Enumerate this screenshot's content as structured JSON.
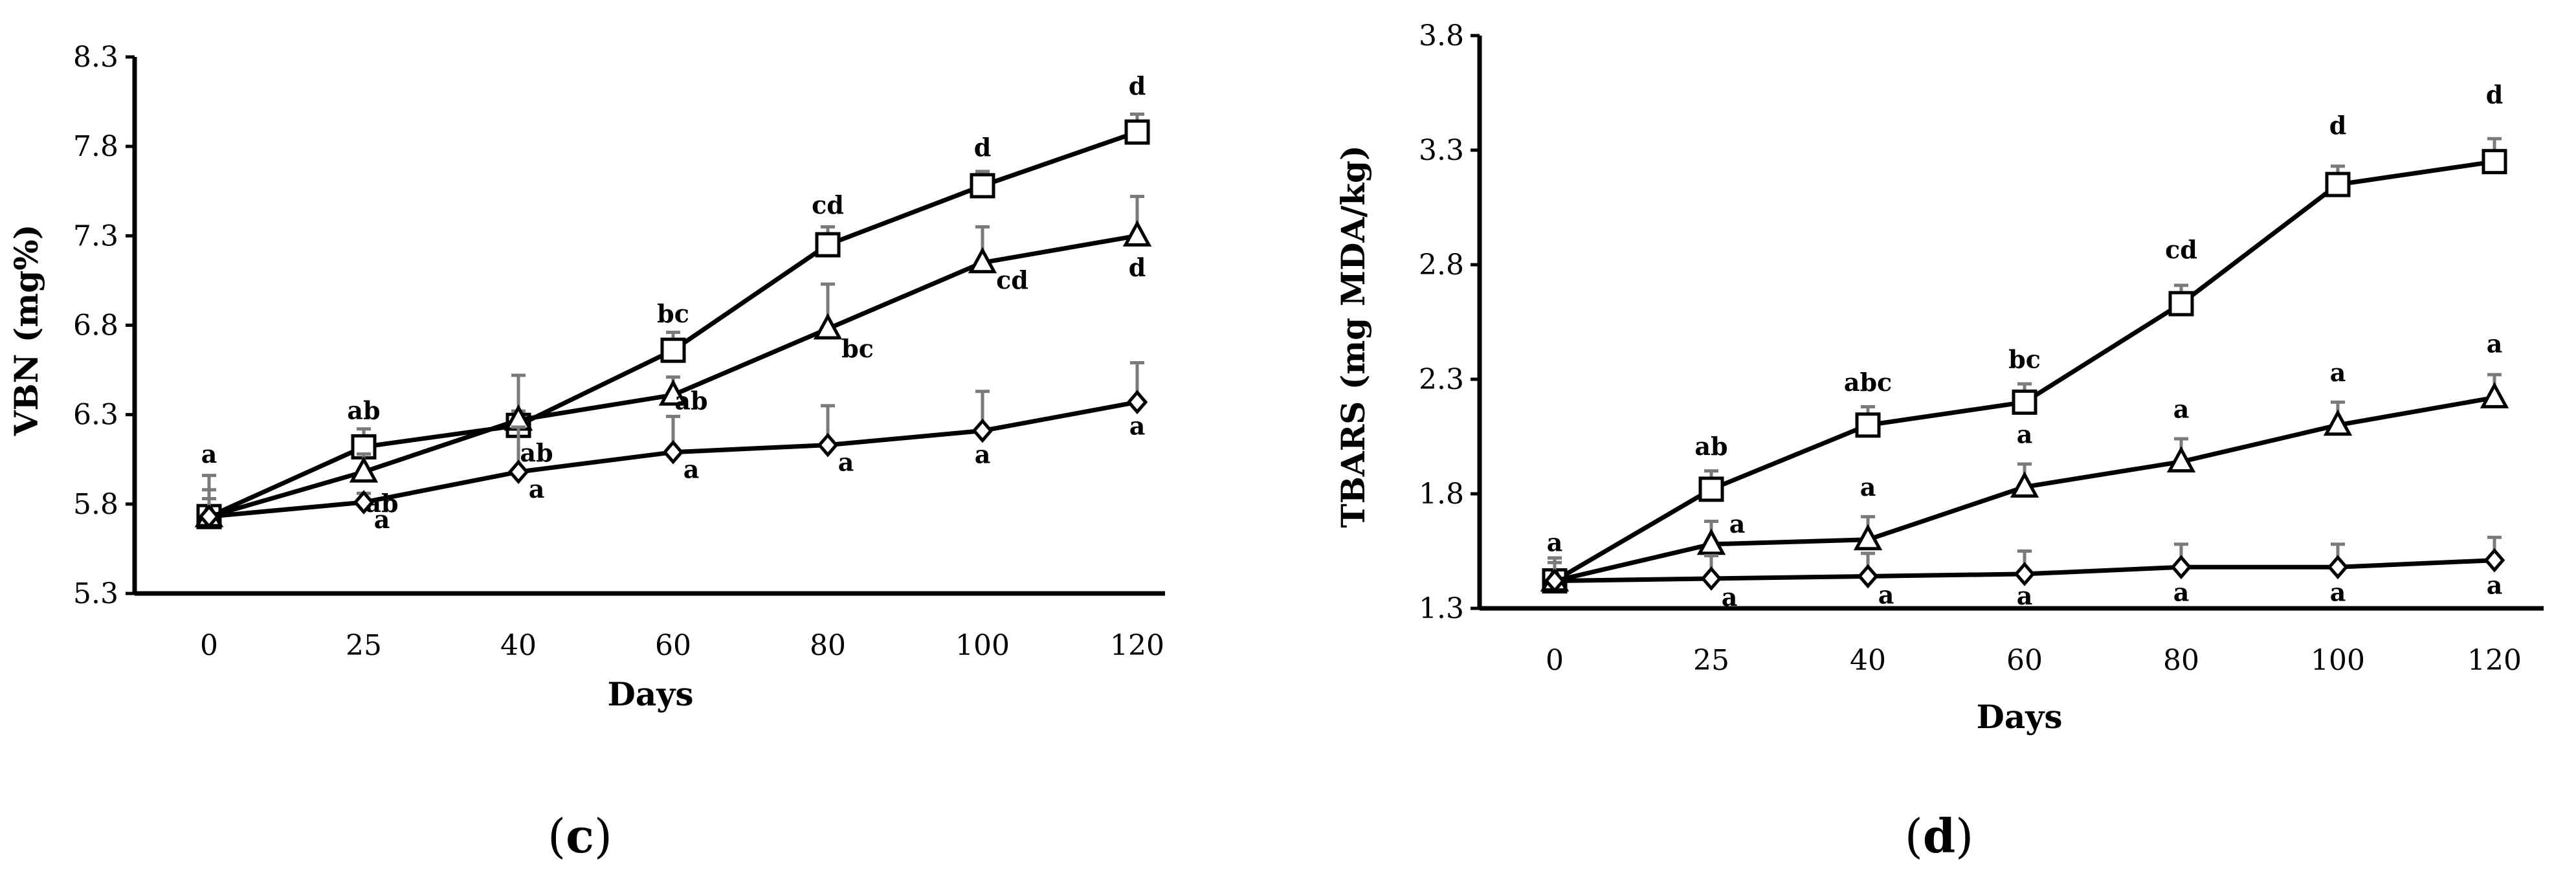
{
  "chart_data": [
    {
      "id": "c",
      "type": "line",
      "panel_label": "(c)",
      "panel_letter": "c",
      "xlabel": "Days",
      "ylabel": "VBN (mg%)",
      "categories": [
        0,
        25,
        40,
        60,
        80,
        100,
        120
      ],
      "ylim": [
        5.3,
        8.3
      ],
      "yticks": [
        "5.3",
        "5.8",
        "6.3",
        "6.8",
        "7.3",
        "7.8",
        "8.3"
      ],
      "series": [
        {
          "name": "square",
          "marker": "square",
          "values": [
            5.73,
            6.12,
            6.24,
            6.66,
            7.25,
            7.58,
            7.88
          ],
          "errors": [
            0.23,
            0.1,
            0.08,
            0.1,
            0.1,
            0.08,
            0.1
          ],
          "labels": [
            "",
            "ab",
            "",
            "bc",
            "cd",
            "d",
            "d"
          ]
        },
        {
          "name": "triangle",
          "marker": "triangle",
          "values": [
            5.73,
            5.98,
            6.27,
            6.41,
            6.78,
            7.15,
            7.3
          ],
          "errors": [
            0.15,
            0.1,
            0.25,
            0.1,
            0.25,
            0.2,
            0.22
          ],
          "labels": [
            "",
            "ab",
            "ab",
            "ab",
            "bc",
            "cd",
            "d"
          ]
        },
        {
          "name": "diamond",
          "marker": "diamond",
          "values": [
            5.73,
            5.81,
            5.98,
            6.09,
            6.13,
            6.21,
            6.37
          ],
          "errors": [
            0.1,
            0.05,
            0.25,
            0.2,
            0.22,
            0.22,
            0.22
          ],
          "labels": [
            "a",
            "a",
            "a",
            "a",
            "a",
            "a",
            "a"
          ]
        }
      ]
    },
    {
      "id": "d",
      "type": "line",
      "panel_label": "(d)",
      "panel_letter": "d",
      "xlabel": "Days",
      "ylabel": "TBARS (mg MDA/kg)",
      "categories": [
        0,
        25,
        40,
        60,
        80,
        100,
        120
      ],
      "ylim": [
        1.3,
        3.8
      ],
      "yticks": [
        "1.3",
        "1.8",
        "2.3",
        "2.8",
        "3.3",
        "3.8"
      ],
      "series": [
        {
          "name": "square",
          "marker": "square",
          "values": [
            1.42,
            1.82,
            2.1,
            2.2,
            2.63,
            3.15,
            3.25
          ],
          "errors": [
            0.1,
            0.08,
            0.08,
            0.08,
            0.08,
            0.08,
            0.1
          ],
          "labels": [
            "a",
            "ab",
            "abc",
            "bc",
            "cd",
            "d",
            "d"
          ]
        },
        {
          "name": "triangle",
          "marker": "triangle",
          "values": [
            1.42,
            1.58,
            1.6,
            1.83,
            1.94,
            2.1,
            2.22
          ],
          "errors": [
            0.08,
            0.1,
            0.1,
            0.1,
            0.1,
            0.1,
            0.1
          ],
          "labels": [
            "",
            "a",
            "a",
            "a",
            "a",
            "a",
            "a"
          ]
        },
        {
          "name": "diamond",
          "marker": "diamond",
          "values": [
            1.42,
            1.43,
            1.44,
            1.45,
            1.48,
            1.48,
            1.51
          ],
          "errors": [
            0.1,
            0.1,
            0.1,
            0.1,
            0.1,
            0.1,
            0.1
          ],
          "labels": [
            "",
            "a",
            "a",
            "a",
            "a",
            "a",
            "a"
          ]
        }
      ]
    }
  ]
}
